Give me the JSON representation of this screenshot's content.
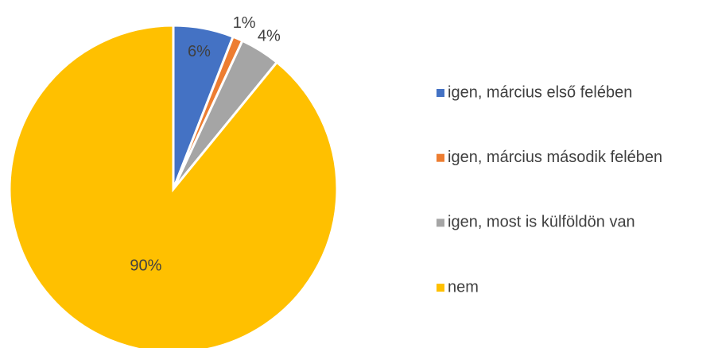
{
  "chart_data": {
    "type": "pie",
    "categories": [
      "igen, március első felében",
      "igen, március második felében",
      "igen, most is külföldön van",
      "nem"
    ],
    "values": [
      6,
      1,
      4,
      90
    ],
    "value_labels": [
      "6%",
      "1%",
      "4%",
      "90%"
    ],
    "colors": [
      "#4472c4",
      "#ed7d31",
      "#a5a5a5",
      "#ffc000"
    ],
    "legend": "right"
  }
}
